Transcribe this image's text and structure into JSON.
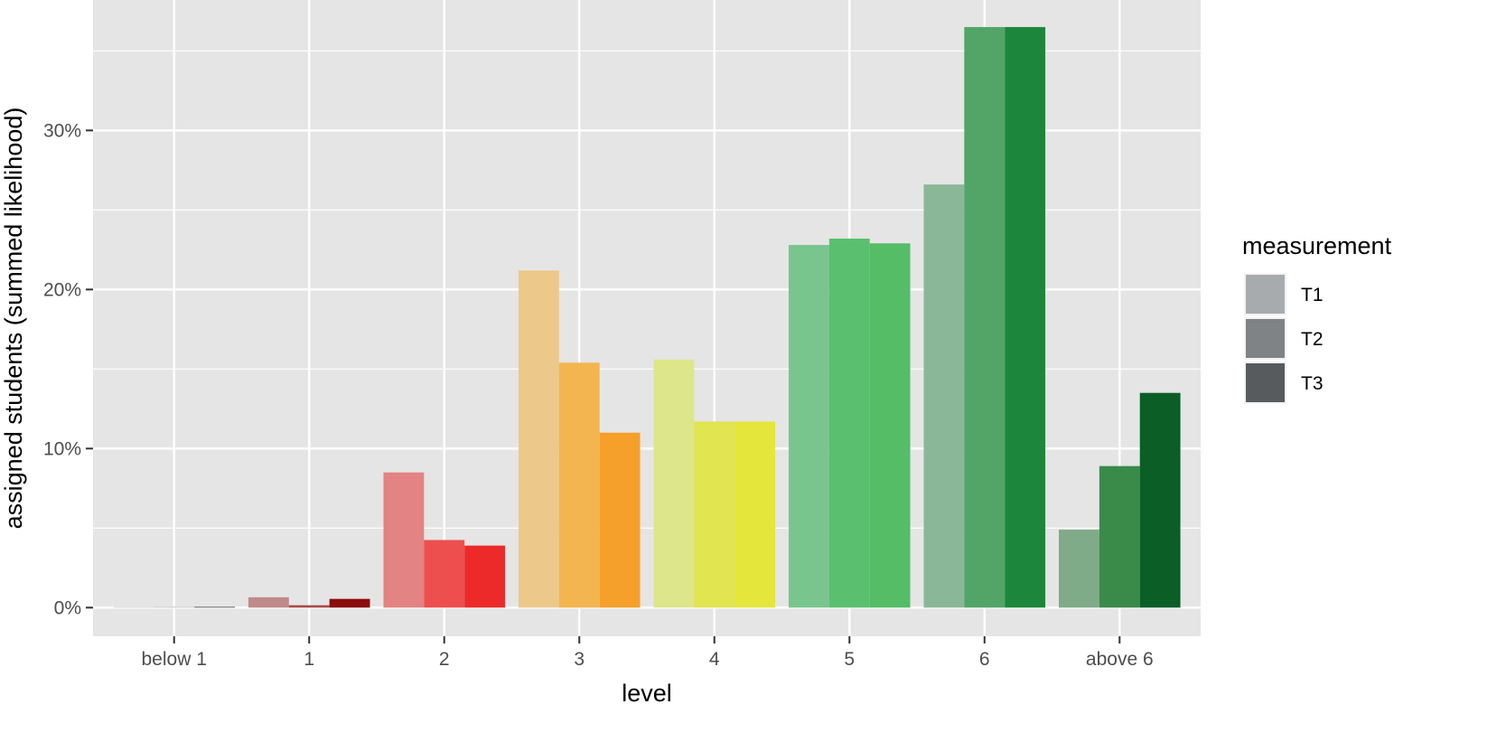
{
  "chart_data": {
    "type": "bar",
    "xlabel": "level",
    "ylabel": "assigned students (summed likelihood)",
    "categories": [
      "below 1",
      "1",
      "2",
      "3",
      "4",
      "5",
      "6",
      "above 6"
    ],
    "series": [
      {
        "name": "T1",
        "values": [
          0.05,
          0.65,
          8.5,
          21.2,
          15.6,
          22.8,
          26.6,
          4.9
        ]
      },
      {
        "name": "T2",
        "values": [
          0.0,
          0.15,
          4.25,
          15.4,
          11.7,
          23.2,
          36.5,
          8.9
        ]
      },
      {
        "name": "T3",
        "values": [
          0.05,
          0.55,
          3.9,
          11.0,
          11.7,
          22.9,
          36.5,
          13.5
        ]
      }
    ],
    "ylim": [
      -1.8,
      38.2
    ],
    "yticks": [
      0,
      10,
      20,
      30
    ],
    "ytick_labels": [
      "0%",
      "10%",
      "20%",
      "30%"
    ],
    "grid": true,
    "legend": {
      "title": "measurement",
      "placement": "right",
      "entries": [
        {
          "label": "T1",
          "color": "#a8abad"
        },
        {
          "label": "T2",
          "color": "#808385"
        },
        {
          "label": "T3",
          "color": "#575b5e"
        }
      ]
    },
    "colors": {
      "panel_background": "#e5e5e5",
      "grid": "#ffffff",
      "bars": [
        [
          "#d6d6d6",
          "#c5c5c5",
          "#5b5b5b"
        ],
        [
          "#c08a8a",
          "#a94848",
          "#8a0c0c"
        ],
        [
          "#e38383",
          "#ed4f4f",
          "#ec2a2a"
        ],
        [
          "#edc88b",
          "#f3b54f",
          "#f5a02b"
        ],
        [
          "#dde68a",
          "#e0e550",
          "#e5e63c"
        ],
        [
          "#78c68e",
          "#5ac06f",
          "#55bd65"
        ],
        [
          "#8ab797",
          "#52a566",
          "#1c873c"
        ],
        [
          "#80ab88",
          "#3a8a4a",
          "#0a5e26"
        ]
      ]
    }
  }
}
